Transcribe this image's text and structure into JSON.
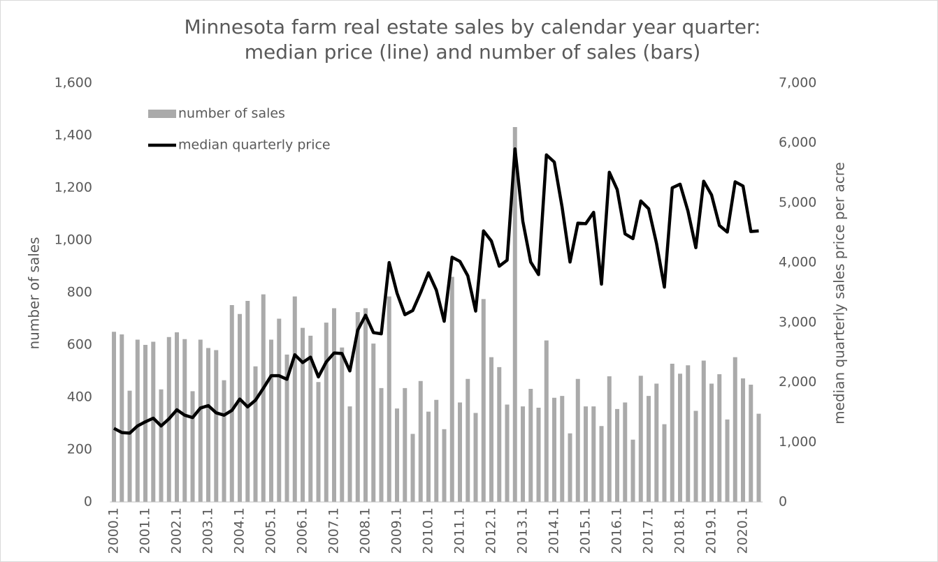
{
  "chart_data": {
    "type": "bar",
    "title": "Minnesota farm real estate sales by calendar year quarter:",
    "subtitle": "median price (line) and number of sales (bars)",
    "y_label": "number of sales",
    "y2_label": "median quarterly sales price per acre",
    "categories": [
      "2000.1",
      null,
      null,
      null,
      "2001.1",
      null,
      null,
      null,
      "2002.1",
      null,
      null,
      null,
      "2003.1",
      null,
      null,
      null,
      "2004.1",
      null,
      null,
      null,
      "2005.1",
      null,
      null,
      null,
      "2006.1",
      null,
      null,
      null,
      "2007.1",
      null,
      null,
      null,
      "2008.1",
      null,
      null,
      null,
      "2009.1",
      null,
      null,
      null,
      "2010.1",
      null,
      null,
      null,
      "2011.1",
      null,
      null,
      null,
      "2012.1",
      null,
      null,
      null,
      "2013.1",
      null,
      null,
      null,
      "2014.1",
      null,
      null,
      null,
      "2015.1",
      null,
      null,
      null,
      "2016.1",
      null,
      null,
      null,
      "2017.1",
      null,
      null,
      null,
      "2018.1",
      null,
      null,
      null,
      "2019.1",
      null,
      null,
      null,
      "2020.1",
      null,
      null
    ],
    "series": [
      {
        "name": "number of sales",
        "color": "#aaaaaa",
        "type": "bar",
        "axis": "y",
        "values": [
          650,
          640,
          425,
          620,
          600,
          612,
          430,
          630,
          648,
          622,
          423,
          620,
          588,
          580,
          465,
          752,
          718,
          768,
          518,
          793,
          620,
          700,
          563,
          785,
          665,
          635,
          458,
          685,
          740,
          590,
          365,
          725,
          740,
          605,
          435,
          785,
          357,
          435,
          260,
          462,
          345,
          390,
          278,
          860,
          380,
          470,
          340,
          775,
          553,
          515,
          372,
          1432,
          365,
          432,
          360,
          617,
          398,
          405,
          262,
          470,
          365,
          365,
          290,
          480,
          355,
          380,
          238,
          482,
          405,
          452,
          297,
          528,
          490,
          522,
          348,
          540,
          452,
          488,
          315,
          553,
          472,
          448,
          337
        ]
      },
      {
        "name": "median quarterly price",
        "color": "#000000",
        "type": "line",
        "axis": "y2",
        "values": [
          1230,
          1160,
          1150,
          1270,
          1340,
          1400,
          1270,
          1390,
          1540,
          1450,
          1410,
          1570,
          1610,
          1490,
          1450,
          1530,
          1720,
          1590,
          1700,
          1900,
          2110,
          2110,
          2050,
          2460,
          2330,
          2420,
          2090,
          2340,
          2490,
          2480,
          2190,
          2870,
          3120,
          2830,
          2810,
          4000,
          3490,
          3130,
          3200,
          3500,
          3830,
          3540,
          3020,
          4090,
          4020,
          3780,
          3190,
          4530,
          4360,
          3940,
          4040,
          5900,
          4690,
          4010,
          3800,
          5800,
          5680,
          4920,
          4010,
          4660,
          4650,
          4840,
          3640,
          5510,
          5220,
          4480,
          4400,
          5030,
          4900,
          4320,
          3590,
          5250,
          5310,
          4860,
          4250,
          5360,
          5130,
          4620,
          4510,
          5350,
          5280,
          4520,
          4530
        ]
      }
    ],
    "ylim": [
      0,
      1600
    ],
    "yticks": [
      0,
      200,
      400,
      600,
      800,
      {
        "value": 1000,
        "label": "1,000"
      },
      {
        "value": 1200,
        "label": "1,200"
      },
      {
        "value": 1400,
        "label": "1,400"
      },
      {
        "value": 1600,
        "label": "1,600"
      }
    ],
    "y2lim": [
      0,
      7000
    ],
    "y2ticks": [
      0,
      {
        "value": 1000,
        "label": "1,000"
      },
      {
        "value": 2000,
        "label": "2,000"
      },
      {
        "value": 3000,
        "label": "3,000"
      },
      {
        "value": 4000,
        "label": "4,000"
      },
      {
        "value": 5000,
        "label": "5,000"
      },
      {
        "value": 6000,
        "label": "6,000"
      },
      {
        "value": 7000,
        "label": "7,000"
      }
    ],
    "grid": false,
    "legend": "top-left"
  }
}
